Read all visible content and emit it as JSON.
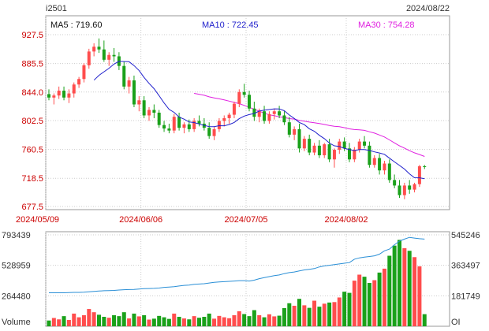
{
  "header": {
    "symbol": "i2501",
    "date": "2024/08/22"
  },
  "ma_labels": {
    "ma5": "MA5 : 719.60",
    "ma10": "MA10 : 722.45",
    "ma30": "MA30 : 754.28"
  },
  "colors": {
    "up": "#ff4d4d",
    "down": "#1aa11a",
    "ma5": "#111111",
    "ma10": "#2020cc",
    "ma30": "#e020e0",
    "oi": "#2a8fd6",
    "price_labels": "#cc0000",
    "grid": "#cccccc",
    "frame": "#999999"
  },
  "chart_data": {
    "type": "candlestick",
    "price_axis": {
      "ticks": [
        "927.5",
        "885.5",
        "844.0",
        "802.5",
        "760.5",
        "718.5",
        "677.5"
      ],
      "range": [
        677.5,
        927.5
      ]
    },
    "date_ticks": [
      {
        "label": "2024/05/09",
        "index": 0
      },
      {
        "label": "2024/06/06",
        "index": 19
      },
      {
        "label": "2024/07/05",
        "index": 40
      },
      {
        "label": "2024/08/02",
        "index": 60
      }
    ],
    "candles": [
      [
        841,
        848,
        832,
        836
      ],
      [
        836,
        842,
        826,
        839
      ],
      [
        839,
        852,
        834,
        846
      ],
      [
        846,
        852,
        832,
        836
      ],
      [
        836,
        848,
        828,
        842
      ],
      [
        842,
        858,
        836,
        855
      ],
      [
        855,
        866,
        850,
        863
      ],
      [
        863,
        886,
        858,
        883
      ],
      [
        883,
        907,
        878,
        903
      ],
      [
        903,
        915,
        896,
        910
      ],
      [
        910,
        922,
        901,
        906
      ],
      [
        906,
        919,
        888,
        891
      ],
      [
        891,
        902,
        882,
        898
      ],
      [
        898,
        908,
        888,
        896
      ],
      [
        896,
        902,
        876,
        882
      ],
      [
        882,
        888,
        848,
        852
      ],
      [
        852,
        866,
        842,
        861
      ],
      [
        861,
        868,
        822,
        826
      ],
      [
        826,
        838,
        816,
        832
      ],
      [
        832,
        838,
        806,
        810
      ],
      [
        810,
        822,
        802,
        818
      ],
      [
        818,
        826,
        806,
        814
      ],
      [
        814,
        818,
        792,
        796
      ],
      [
        796,
        802,
        786,
        791
      ],
      [
        791,
        798,
        784,
        788
      ],
      [
        788,
        812,
        784,
        808
      ],
      [
        808,
        814,
        788,
        792
      ],
      [
        792,
        800,
        784,
        797
      ],
      [
        797,
        804,
        786,
        790
      ],
      [
        790,
        806,
        786,
        802
      ],
      [
        802,
        810,
        794,
        798
      ],
      [
        798,
        806,
        788,
        792
      ],
      [
        792,
        800,
        776,
        780
      ],
      [
        780,
        794,
        774,
        790
      ],
      [
        790,
        806,
        786,
        802
      ],
      [
        802,
        810,
        794,
        806
      ],
      [
        806,
        814,
        798,
        811
      ],
      [
        811,
        830,
        806,
        827
      ],
      [
        827,
        848,
        822,
        844
      ],
      [
        844,
        856,
        836,
        840
      ],
      [
        840,
        846,
        816,
        820
      ],
      [
        820,
        830,
        802,
        808
      ],
      [
        808,
        820,
        800,
        816
      ],
      [
        816,
        824,
        798,
        802
      ],
      [
        802,
        816,
        798,
        812
      ],
      [
        812,
        820,
        804,
        816
      ],
      [
        816,
        824,
        806,
        810
      ],
      [
        810,
        816,
        796,
        800
      ],
      [
        800,
        808,
        778,
        782
      ],
      [
        782,
        794,
        774,
        790
      ],
      [
        790,
        798,
        756,
        762
      ],
      [
        762,
        780,
        758,
        776
      ],
      [
        776,
        782,
        752,
        756
      ],
      [
        756,
        770,
        752,
        766
      ],
      [
        766,
        774,
        748,
        752
      ],
      [
        752,
        770,
        748,
        768
      ],
      [
        768,
        776,
        742,
        746
      ],
      [
        746,
        762,
        734,
        760
      ],
      [
        760,
        776,
        754,
        772
      ],
      [
        772,
        778,
        758,
        762
      ],
      [
        762,
        770,
        742,
        746
      ],
      [
        746,
        764,
        742,
        760
      ],
      [
        760,
        776,
        756,
        772
      ],
      [
        772,
        780,
        762,
        766
      ],
      [
        766,
        772,
        734,
        738
      ],
      [
        738,
        752,
        734,
        748
      ],
      [
        748,
        754,
        724,
        730
      ],
      [
        730,
        744,
        724,
        740
      ],
      [
        740,
        746,
        712,
        716
      ],
      [
        716,
        724,
        704,
        708
      ],
      [
        708,
        716,
        690,
        694
      ],
      [
        694,
        712,
        688,
        708
      ],
      [
        708,
        716,
        696,
        702
      ],
      [
        702,
        712,
        698,
        710
      ],
      [
        710,
        738,
        706,
        736
      ],
      [
        736,
        738,
        732,
        735
      ]
    ],
    "volume_axis": {
      "ticks": [
        "793439",
        "528959",
        "264480"
      ],
      "max": 793439,
      "label": "Volume"
    },
    "oi_axis": {
      "ticks": [
        "545246",
        "363497",
        "181749"
      ],
      "max": 545246,
      "label": "OI"
    },
    "volume": [
      50000,
      72000,
      60000,
      88000,
      55000,
      110000,
      78000,
      96000,
      150000,
      122000,
      100000,
      82000,
      74000,
      96000,
      88000,
      122000,
      68000,
      110000,
      86000,
      96000,
      58000,
      66000,
      90000,
      78000,
      64000,
      110000,
      82000,
      68000,
      60000,
      88000,
      74000,
      82000,
      110000,
      66000,
      90000,
      78000,
      70000,
      96000,
      130000,
      106000,
      88000,
      140000,
      96000,
      78000,
      104000,
      86000,
      92000,
      158000,
      200000,
      178000,
      238000,
      182000,
      160000,
      222000,
      170000,
      196000,
      206000,
      210000,
      250000,
      300000,
      290000,
      396000,
      448000,
      430000,
      376000,
      400000,
      466000,
      500000,
      612000,
      700000,
      750000,
      678000,
      655000,
      600000,
      520000,
      105000
    ],
    "oi": [
      200000,
      200000,
      200000,
      200000,
      201000,
      202000,
      202000,
      203000,
      206000,
      208000,
      210000,
      212000,
      213000,
      214000,
      216000,
      218000,
      219000,
      220000,
      222000,
      224000,
      225000,
      226000,
      228000,
      232000,
      234000,
      236000,
      240000,
      244000,
      246000,
      250000,
      252000,
      254000,
      258000,
      262000,
      264000,
      266000,
      268000,
      270000,
      272000,
      272000,
      270000,
      275000,
      284000,
      290000,
      296000,
      302000,
      306000,
      314000,
      320000,
      324000,
      330000,
      336000,
      340000,
      344000,
      354000,
      360000,
      364000,
      368000,
      372000,
      376000,
      380000,
      400000,
      408000,
      412000,
      416000,
      420000,
      430000,
      450000,
      460000,
      486000,
      508000,
      520000,
      530000,
      526000,
      522000,
      520000
    ]
  }
}
